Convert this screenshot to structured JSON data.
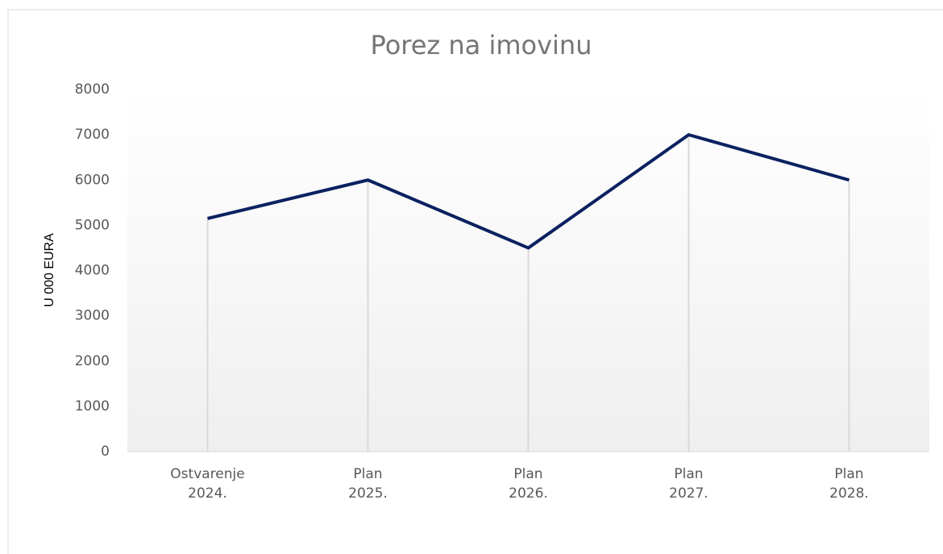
{
  "chart_data": {
    "type": "line",
    "title": "Porez na imovinu",
    "y_label": "U 000 EURA",
    "categories": [
      "Ostvarenje 2024.",
      "Plan 2025.",
      "Plan 2026.",
      "Plan 2027.",
      "Plan 2028."
    ],
    "values": [
      5150,
      6000,
      4500,
      7000,
      6000
    ],
    "color": "#0b2160",
    "ylim": [
      0,
      8000
    ],
    "yticks": [
      0,
      1000,
      2000,
      3000,
      4000,
      5000,
      6000,
      7000,
      8000
    ],
    "drop_lines": true
  }
}
